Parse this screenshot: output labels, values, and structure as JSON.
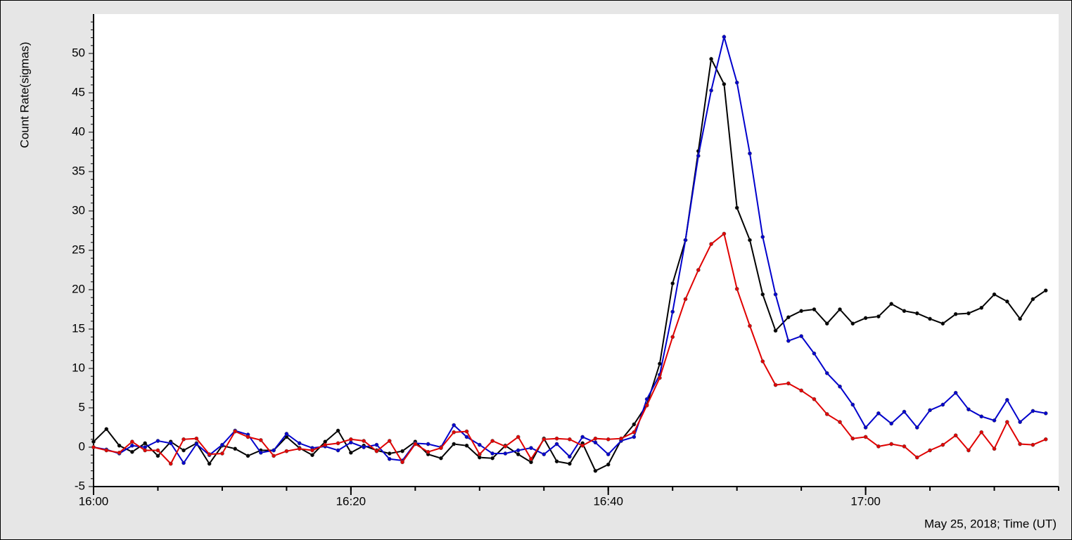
{
  "chart_data": {
    "type": "line",
    "y_label": "Count Rate(sigmas)",
    "x_label": "May 25, 2018; Time (UT)",
    "x": [
      "16:00",
      "16:01",
      "16:02",
      "16:03",
      "16:04",
      "16:05",
      "16:06",
      "16:07",
      "16:08",
      "16:09",
      "16:10",
      "16:11",
      "16:12",
      "16:13",
      "16:14",
      "16:15",
      "16:16",
      "16:17",
      "16:18",
      "16:19",
      "16:20",
      "16:21",
      "16:22",
      "16:23",
      "16:24",
      "16:25",
      "16:26",
      "16:27",
      "16:28",
      "16:29",
      "16:30",
      "16:31",
      "16:32",
      "16:33",
      "16:34",
      "16:35",
      "16:36",
      "16:37",
      "16:38",
      "16:39",
      "16:40",
      "16:41",
      "16:42",
      "16:43",
      "16:44",
      "16:45",
      "16:46",
      "16:47",
      "16:48",
      "16:49",
      "16:50",
      "16:51",
      "16:52",
      "16:53",
      "16:54",
      "16:55",
      "16:56",
      "16:57",
      "16:58",
      "16:59",
      "17:00",
      "17:01",
      "17:02",
      "17:03",
      "17:04",
      "17:05",
      "17:06",
      "17:07",
      "17:08",
      "17:09",
      "17:10",
      "17:11",
      "17:12",
      "17:13",
      "17:14"
    ],
    "xlim": [
      "16:00",
      "17:15"
    ],
    "xticks": [
      "16:00",
      "16:20",
      "16:40",
      "17:00"
    ],
    "ylim": [
      -5,
      55
    ],
    "yticks": [
      -5,
      0,
      5,
      10,
      15,
      20,
      25,
      30,
      35,
      40,
      45,
      50
    ],
    "series": [
      {
        "color": "#000000",
        "values": [
          0.7,
          2.3,
          0.2,
          -0.6,
          0.5,
          -1.1,
          0.7,
          -0.4,
          0.5,
          -2.1,
          0.2,
          -0.2,
          -1.1,
          -0.4,
          -0.4,
          1.3,
          -0.1,
          -1.0,
          0.7,
          2.1,
          -0.7,
          0.2,
          -0.4,
          -0.8,
          -0.5,
          0.7,
          -0.9,
          -1.4,
          0.4,
          0.2,
          -1.3,
          -1.4,
          0.2,
          -0.9,
          -1.9,
          1.1,
          -1.8,
          -2.1,
          0.5,
          -3.0,
          -2.2,
          0.9,
          2.9,
          5.4,
          10.6,
          20.8,
          26.3,
          37.6,
          49.3,
          46.1,
          30.4,
          26.3,
          19.4,
          14.8,
          16.5,
          17.3,
          17.5,
          15.7,
          17.5,
          15.7,
          16.4,
          16.6,
          18.2,
          17.3,
          17.0,
          16.3,
          15.7,
          16.9,
          17.0,
          17.7,
          19.4,
          18.5,
          16.3,
          18.8,
          19.9
        ]
      },
      {
        "color": "#0000cc",
        "values": [
          0,
          -0.3,
          -0.8,
          0.2,
          0,
          0.8,
          0.5,
          -2.0,
          0.4,
          -1.0,
          0.3,
          2.1,
          1.6,
          -0.7,
          -0.4,
          1.7,
          0.5,
          -0.1,
          0.1,
          -0.4,
          0.6,
          0,
          0.3,
          -1.5,
          -1.7,
          0.5,
          0.4,
          0,
          2.8,
          1.3,
          0.3,
          -0.8,
          -0.8,
          -0.4,
          -0.1,
          -0.9,
          0.4,
          -1.2,
          1.3,
          0.6,
          -0.9,
          0.8,
          1.3,
          6.1,
          9.2,
          17.2,
          26.3,
          37.0,
          45.3,
          52.1,
          46.3,
          37.3,
          26.7,
          19.4,
          13.5,
          14.1,
          11.9,
          9.4,
          7.7,
          5.4,
          2.5,
          4.3,
          3.0,
          4.5,
          2.5,
          4.7,
          5.4,
          6.9,
          4.8,
          3.9,
          3.4,
          6.0,
          3.2,
          4.6,
          4.3
        ]
      },
      {
        "color": "#e00000",
        "values": [
          0,
          -0.4,
          -0.7,
          0.7,
          -0.4,
          -0.4,
          -2.1,
          1.0,
          1.1,
          -0.9,
          -0.8,
          2.0,
          1.3,
          0.9,
          -1.1,
          -0.5,
          -0.2,
          -0.4,
          0.3,
          0.5,
          1.0,
          0.8,
          -0.5,
          0.8,
          -1.9,
          0.4,
          -0.6,
          -0.1,
          1.9,
          2.0,
          -0.9,
          0.8,
          0.1,
          1.3,
          -1.5,
          1.0,
          1.1,
          1.0,
          0.2,
          1.1,
          1.0,
          1.1,
          1.9,
          5.3,
          8.8,
          14.0,
          18.8,
          22.5,
          25.8,
          27.1,
          20.1,
          15.4,
          10.9,
          7.9,
          8.1,
          7.2,
          6.1,
          4.2,
          3.2,
          1.1,
          1.3,
          0.1,
          0.4,
          0.1,
          -1.3,
          -0.4,
          0.3,
          1.5,
          -0.4,
          1.9,
          -0.2,
          3.2,
          0.4,
          0.3,
          1.0
        ]
      }
    ]
  }
}
